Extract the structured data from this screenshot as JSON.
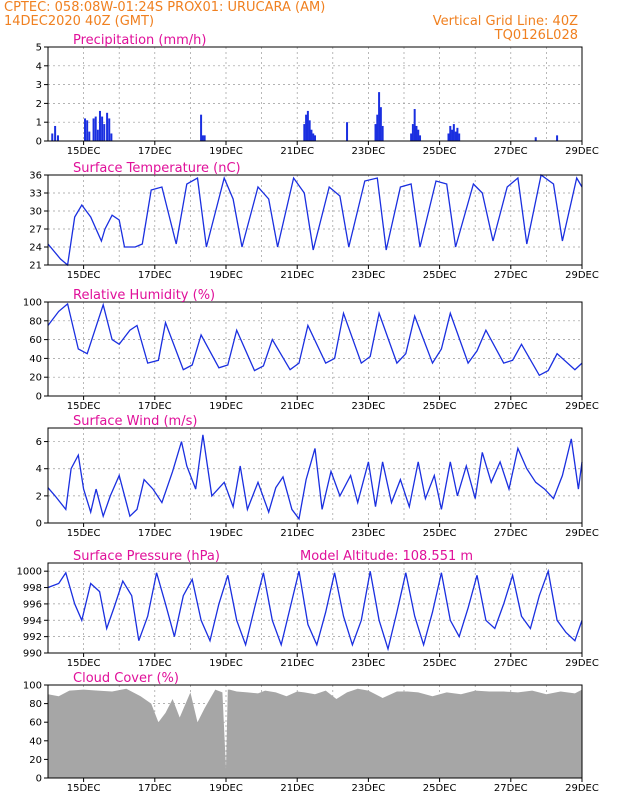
{
  "header": {
    "left1": "CPTEC:   058:08W-01:24S   PROX01: URUCARA (AM)",
    "left2": "14DEC2020 40Z (GMT)",
    "right1": "Vertical Grid Line: 40Z",
    "right2": "TQ0126L028"
  },
  "colors": {
    "line": "#1a2fe0",
    "bar": "#1a2fe0",
    "cloud": "#a6a6a6",
    "title": "#e0109a",
    "header": "#f08020"
  },
  "x_ticks": [
    "15DEC",
    "17DEC",
    "19DEC",
    "21DEC",
    "23DEC",
    "25DEC",
    "27DEC",
    "29DEC"
  ],
  "x_tick_days": [
    15,
    17,
    19,
    21,
    23,
    25,
    27,
    29
  ],
  "x_range": [
    14.0,
    29.0
  ],
  "chart_data": [
    {
      "id": "precip",
      "type": "bar",
      "title": "Precipitation (mm/h)",
      "ylim": [
        0,
        5
      ],
      "yticks": [
        0,
        1,
        2,
        3,
        4,
        5
      ],
      "x": [
        14.12,
        14.2,
        14.28,
        15.04,
        15.1,
        15.16,
        15.28,
        15.34,
        15.4,
        15.46,
        15.52,
        15.58,
        15.66,
        15.72,
        15.78,
        18.3,
        18.35,
        18.4,
        21.2,
        21.25,
        21.3,
        21.35,
        21.4,
        21.45,
        21.5,
        22.4,
        23.2,
        23.25,
        23.3,
        23.35,
        23.4,
        24.2,
        24.25,
        24.3,
        24.35,
        24.4,
        24.45,
        25.25,
        25.3,
        25.35,
        25.4,
        25.45,
        25.5,
        25.55,
        27.7,
        28.3
      ],
      "values": [
        0.4,
        0.8,
        0.3,
        1.2,
        1.1,
        0.5,
        1.2,
        1.3,
        0.6,
        1.6,
        1.3,
        0.9,
        1.5,
        1.2,
        0.4,
        1.4,
        0.3,
        0.3,
        0.9,
        1.4,
        1.6,
        1.1,
        0.6,
        0.4,
        0.3,
        1.0,
        0.9,
        1.4,
        2.6,
        1.8,
        0.8,
        0.4,
        0.9,
        1.7,
        0.8,
        0.6,
        0.3,
        0.4,
        0.8,
        0.6,
        0.9,
        0.5,
        0.7,
        0.4,
        0.2,
        0.3
      ]
    },
    {
      "id": "temp",
      "type": "line",
      "title": "Surface Temperature (nC)",
      "ylim": [
        21,
        36
      ],
      "yticks": [
        21,
        24,
        27,
        30,
        33,
        36
      ],
      "x": [
        14.0,
        14.35,
        14.55,
        14.75,
        14.95,
        15.2,
        15.5,
        15.6,
        15.8,
        16.0,
        16.15,
        16.45,
        16.65,
        16.9,
        17.2,
        17.6,
        17.9,
        18.2,
        18.45,
        18.95,
        19.2,
        19.45,
        19.9,
        20.2,
        20.45,
        20.9,
        21.2,
        21.45,
        21.9,
        22.2,
        22.45,
        22.9,
        23.25,
        23.5,
        23.9,
        24.2,
        24.45,
        24.9,
        25.2,
        25.45,
        25.95,
        26.2,
        26.5,
        26.9,
        27.2,
        27.45,
        27.85,
        28.2,
        28.45,
        28.85,
        29.0
      ],
      "values": [
        24.5,
        22.0,
        21.0,
        29.0,
        31.0,
        29.0,
        25.0,
        27.0,
        29.3,
        28.5,
        24.0,
        24.0,
        24.5,
        33.5,
        34.0,
        24.5,
        34.5,
        35.5,
        24.0,
        35.5,
        32.0,
        24.0,
        34.0,
        32.0,
        24.0,
        35.5,
        33.0,
        23.5,
        34.0,
        32.5,
        24.0,
        35.0,
        35.5,
        23.5,
        34.0,
        34.5,
        24.0,
        35.0,
        34.5,
        24.0,
        34.5,
        33.0,
        25.0,
        34.0,
        35.5,
        24.5,
        36.0,
        34.5,
        25.0,
        35.5,
        34.0
      ]
    },
    {
      "id": "rh",
      "type": "line",
      "title": "Relative Humidity (%)",
      "ylim": [
        0,
        100
      ],
      "yticks": [
        0,
        20,
        40,
        60,
        80,
        100
      ],
      "x": [
        14.0,
        14.3,
        14.55,
        14.85,
        15.1,
        15.55,
        15.8,
        16.0,
        16.3,
        16.5,
        16.8,
        17.1,
        17.3,
        17.8,
        18.05,
        18.3,
        18.8,
        19.05,
        19.3,
        19.8,
        20.05,
        20.3,
        20.8,
        21.05,
        21.3,
        21.8,
        22.05,
        22.3,
        22.8,
        23.05,
        23.3,
        23.8,
        24.05,
        24.3,
        24.8,
        25.05,
        25.3,
        25.8,
        26.05,
        26.3,
        26.8,
        27.05,
        27.3,
        27.8,
        28.05,
        28.3,
        28.8,
        29.0
      ],
      "values": [
        75,
        90,
        98,
        50,
        45,
        97,
        60,
        55,
        70,
        75,
        35,
        38,
        78,
        28,
        33,
        65,
        30,
        33,
        70,
        27,
        32,
        60,
        28,
        35,
        75,
        35,
        40,
        88,
        35,
        42,
        88,
        35,
        45,
        85,
        35,
        50,
        88,
        35,
        48,
        70,
        35,
        38,
        55,
        22,
        27,
        45,
        28,
        35
      ]
    },
    {
      "id": "wind",
      "type": "line",
      "title": "Surface Wind (m/s)",
      "ylim": [
        0,
        7
      ],
      "yticks": [
        0,
        2,
        4,
        6
      ],
      "x": [
        14.0,
        14.2,
        14.5,
        14.65,
        14.85,
        15.0,
        15.2,
        15.35,
        15.55,
        15.75,
        16.0,
        16.3,
        16.5,
        16.7,
        16.95,
        17.2,
        17.5,
        17.75,
        17.9,
        18.15,
        18.35,
        18.6,
        18.95,
        19.2,
        19.4,
        19.6,
        19.9,
        20.2,
        20.4,
        20.6,
        20.85,
        21.05,
        21.25,
        21.5,
        21.7,
        21.95,
        22.2,
        22.5,
        22.7,
        23.0,
        23.2,
        23.4,
        23.65,
        23.9,
        24.15,
        24.4,
        24.6,
        24.85,
        25.05,
        25.3,
        25.5,
        25.75,
        26.0,
        26.2,
        26.45,
        26.7,
        26.95,
        27.2,
        27.45,
        27.7,
        27.95,
        28.2,
        28.45,
        28.7,
        28.9,
        29.0
      ],
      "values": [
        2.6,
        2.0,
        1.0,
        4.0,
        5.0,
        2.5,
        0.8,
        2.5,
        0.5,
        2.0,
        3.5,
        0.5,
        1.0,
        3.2,
        2.5,
        1.5,
        3.8,
        6.0,
        4.2,
        2.5,
        6.5,
        2.0,
        3.0,
        1.2,
        4.2,
        1.0,
        3.0,
        0.8,
        2.6,
        3.4,
        1.0,
        0.3,
        3.2,
        5.5,
        1.0,
        3.8,
        2.0,
        3.5,
        1.5,
        4.5,
        1.2,
        4.5,
        1.5,
        3.2,
        1.2,
        4.5,
        1.8,
        3.5,
        1.0,
        4.5,
        2.0,
        4.2,
        1.8,
        5.2,
        3.0,
        4.5,
        2.5,
        5.5,
        4.0,
        3.0,
        2.5,
        1.8,
        3.5,
        6.2,
        2.5,
        4.5
      ]
    },
    {
      "id": "pressure",
      "type": "line",
      "title": "Surface Pressure (hPa)",
      "annotation": "Model Altitude: 108.551 m",
      "ylim": [
        990,
        1001
      ],
      "yticks": [
        990,
        992,
        994,
        996,
        998,
        1000
      ],
      "x": [
        14.0,
        14.3,
        14.5,
        14.75,
        14.95,
        15.2,
        15.45,
        15.65,
        15.85,
        16.1,
        16.35,
        16.55,
        16.8,
        17.05,
        17.3,
        17.55,
        17.8,
        18.05,
        18.3,
        18.55,
        18.8,
        19.05,
        19.3,
        19.55,
        19.8,
        20.05,
        20.3,
        20.55,
        20.8,
        21.05,
        21.3,
        21.55,
        21.8,
        22.05,
        22.3,
        22.55,
        22.8,
        23.05,
        23.3,
        23.55,
        23.8,
        24.05,
        24.3,
        24.55,
        24.8,
        25.05,
        25.3,
        25.55,
        25.8,
        26.05,
        26.3,
        26.55,
        26.8,
        27.05,
        27.3,
        27.55,
        27.8,
        28.05,
        28.3,
        28.55,
        28.8,
        29.0
      ],
      "values": [
        998.0,
        998.5,
        999.8,
        996.0,
        994.0,
        998.5,
        997.5,
        993.0,
        995.5,
        998.8,
        997.0,
        991.5,
        994.5,
        999.8,
        996.0,
        992.0,
        997.0,
        999.0,
        994.0,
        991.5,
        996.0,
        999.5,
        994.0,
        991.0,
        995.5,
        999.8,
        994.0,
        991.0,
        995.5,
        1000.0,
        993.5,
        991.0,
        995.0,
        999.8,
        994.5,
        991.0,
        994.0,
        1000.0,
        994.0,
        990.5,
        995.0,
        999.8,
        994.5,
        991.0,
        995.0,
        999.8,
        994.0,
        992.0,
        995.5,
        999.5,
        994.0,
        993.0,
        996.0,
        999.5,
        994.5,
        993.0,
        997.0,
        1000.0,
        994.0,
        992.5,
        991.5,
        994.0
      ]
    },
    {
      "id": "cloud",
      "type": "area",
      "title": "Cloud Cover (%)",
      "ylim": [
        0,
        100
      ],
      "yticks": [
        0,
        20,
        40,
        60,
        80,
        100
      ],
      "x": [
        14.0,
        14.3,
        14.6,
        15.0,
        15.4,
        15.8,
        16.2,
        16.6,
        16.9,
        17.1,
        17.3,
        17.5,
        17.7,
        18.0,
        18.2,
        18.4,
        18.7,
        18.9,
        19.0,
        19.05,
        19.1,
        19.3,
        19.6,
        19.9,
        20.1,
        20.4,
        20.7,
        21.0,
        21.2,
        21.5,
        21.8,
        22.1,
        22.4,
        22.7,
        23.0,
        23.4,
        23.8,
        24.1,
        24.4,
        24.8,
        25.2,
        25.6,
        26.0,
        26.4,
        26.8,
        27.2,
        27.6,
        28.0,
        28.4,
        28.8,
        29.0
      ],
      "values": [
        90,
        88,
        94,
        95,
        94,
        93,
        96,
        88,
        80,
        60,
        70,
        85,
        65,
        92,
        60,
        75,
        95,
        92,
        10,
        95,
        95,
        93,
        92,
        91,
        94,
        92,
        88,
        93,
        92,
        90,
        94,
        85,
        92,
        96,
        94,
        86,
        93,
        93,
        92,
        88,
        92,
        90,
        94,
        93,
        93,
        92,
        94,
        90,
        93,
        91,
        95
      ]
    }
  ]
}
